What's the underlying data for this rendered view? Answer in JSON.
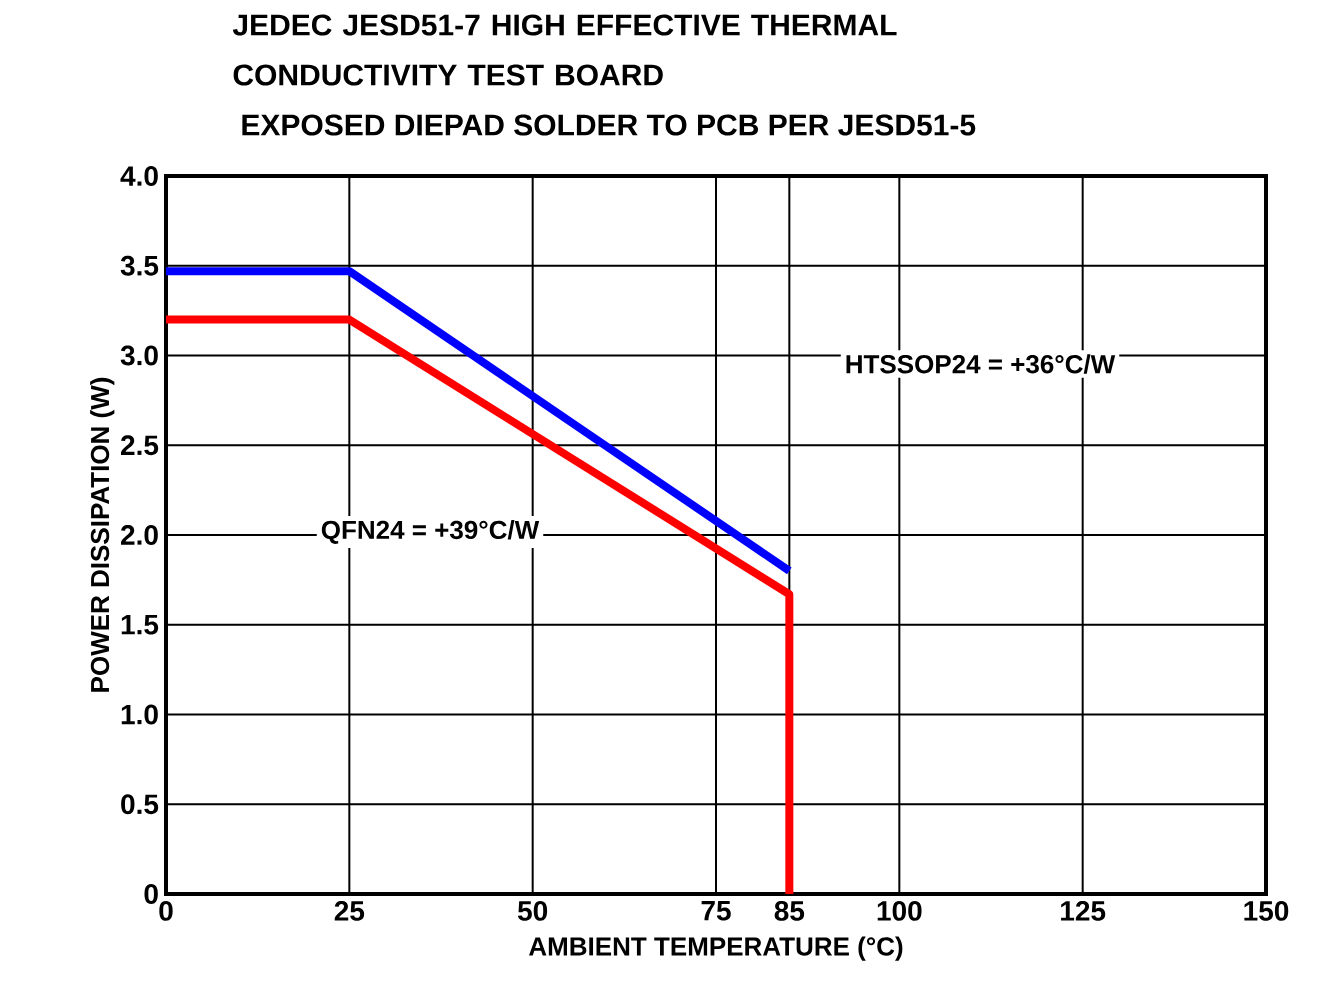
{
  "chart_data": {
    "type": "line",
    "title": "JEDEC JESD51-7 HIGH EFFECTIVE THERMAL CONDUCTIVITY TEST BOARD",
    "subtitle": "EXPOSED DIEPAD SOLDER TO PCB PER JESD51-5",
    "xlabel": "AMBIENT TEMPERATURE (°C)",
    "ylabel": "POWER DISSIPATION (W)",
    "series": [
      {
        "color": "#0000ff",
        "x": [
          0,
          25,
          85
        ],
        "values": [
          3.47,
          3.47,
          1.8
        ]
      },
      {
        "color": "#ff0000",
        "x": [
          0,
          25,
          85,
          85
        ],
        "values": [
          3.2,
          3.2,
          1.67,
          0
        ]
      }
    ],
    "xlim": [
      0,
      150
    ],
    "xticks": [
      0,
      25,
      50,
      75,
      85,
      100,
      125,
      150
    ],
    "ylim": [
      0,
      4
    ],
    "yticks": [
      0,
      0.5,
      {
        "value": 1,
        "label": "1.0"
      },
      1.5,
      {
        "value": 2,
        "label": "2.0"
      },
      2.5,
      {
        "value": 3,
        "label": "3.0"
      },
      3.5,
      {
        "value": 4,
        "label": "4.0"
      }
    ],
    "annotations": [
      "HTSSOP24 = +36°C/W",
      "QFN24 = +39°C/W"
    ],
    "grid": true,
    "marker": "none",
    "line_style": "solid"
  }
}
